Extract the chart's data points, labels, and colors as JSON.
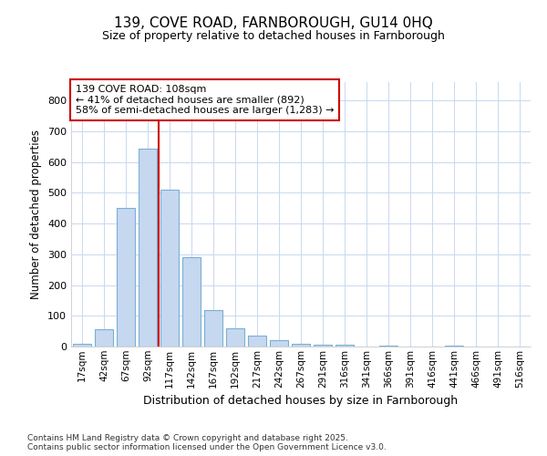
{
  "title1": "139, COVE ROAD, FARNBOROUGH, GU14 0HQ",
  "title2": "Size of property relative to detached houses in Farnborough",
  "xlabel": "Distribution of detached houses by size in Farnborough",
  "ylabel": "Number of detached properties",
  "categories": [
    "17sqm",
    "42sqm",
    "67sqm",
    "92sqm",
    "117sqm",
    "142sqm",
    "167sqm",
    "192sqm",
    "217sqm",
    "242sqm",
    "267sqm",
    "291sqm",
    "316sqm",
    "341sqm",
    "366sqm",
    "391sqm",
    "416sqm",
    "441sqm",
    "466sqm",
    "491sqm",
    "516sqm"
  ],
  "values": [
    10,
    55,
    450,
    643,
    510,
    290,
    120,
    60,
    35,
    20,
    8,
    5,
    5,
    0,
    4,
    0,
    0,
    3,
    0,
    0,
    0
  ],
  "bar_color": "#c5d8f0",
  "bar_edge_color": "#7bafd4",
  "bar_width": 0.8,
  "vline_color": "#cc0000",
  "vline_x_index": 4,
  "annotation_text": "139 COVE ROAD: 108sqm\n← 41% of detached houses are smaller (892)\n58% of semi-detached houses are larger (1,283) →",
  "annotation_box_color": "#ffffff",
  "annotation_box_edge": "#cc0000",
  "ylim": [
    0,
    860
  ],
  "yticks": [
    0,
    100,
    200,
    300,
    400,
    500,
    600,
    700,
    800
  ],
  "footer_text": "Contains HM Land Registry data © Crown copyright and database right 2025.\nContains public sector information licensed under the Open Government Licence v3.0.",
  "bg_color": "#ffffff",
  "plot_bg_color": "#ffffff",
  "grid_color": "#c8d8f0"
}
